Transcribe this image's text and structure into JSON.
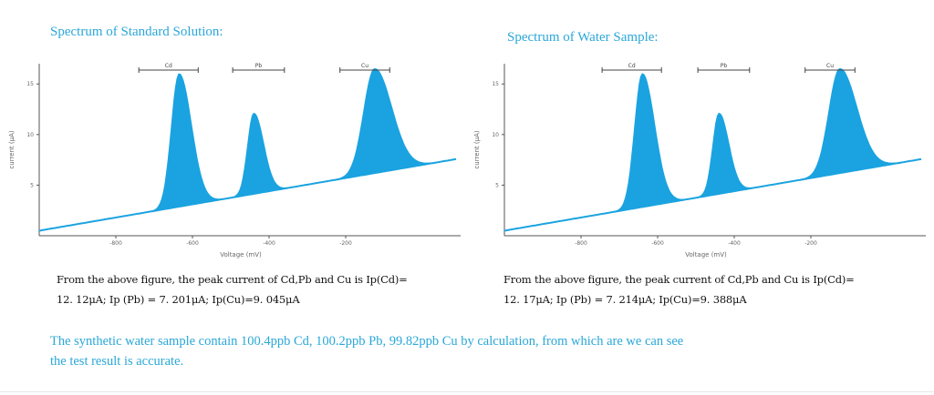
{
  "colors": {
    "fill": "#1aa3e0",
    "title": "#2aa7d8",
    "text": "#111111"
  },
  "titles": {
    "left": "Spectrum of Standard Solution:",
    "right": "Spectrum of Water Sample:"
  },
  "descriptions": {
    "left_line1": "From the above figure, the peak current of Cd,Pb and Cu is Ip(Cd)=",
    "left_line2": "12. 12μA; Ip (Pb) = 7. 201μA; Ip(Cu)=9. 045μA",
    "right_line1": "From the above figure, the peak current of Cd,Pb and Cu is Ip(Cd)=",
    "right_line2": "12. 17μA; Ip (Pb) = 7. 214μA; Ip(Cu)=9. 388μA"
  },
  "conclusion": {
    "line1": "The synthetic water sample contain 100.4ppb Cd, 100.2ppb Pb, 99.82ppb Cu by calculation, from which are we can see",
    "line2": "the test result is accurate."
  },
  "chart_data": [
    {
      "type": "area",
      "title": "Spectrum of Standard Solution:",
      "xlabel": "Voltage (mV)",
      "ylabel": "current (μA)",
      "xlim": [
        -1000,
        100
      ],
      "ylim": [
        0,
        17
      ],
      "xticks": [
        -800,
        -600,
        -400,
        -200
      ],
      "yticks": [
        5,
        10,
        15
      ],
      "baseline": {
        "start": 0.5,
        "slope": 0.0065
      },
      "peaks": [
        {
          "name": "Cd",
          "x": -635,
          "y": 16.0,
          "width": 20,
          "range": [
            -740,
            -585
          ]
        },
        {
          "name": "Pb",
          "x": -440,
          "y": 12.1,
          "width": 16,
          "range": [
            -495,
            -360
          ]
        },
        {
          "name": "Cu",
          "x": -125,
          "y": 16.5,
          "width": 28,
          "range": [
            -215,
            -85
          ]
        }
      ]
    },
    {
      "type": "area",
      "title": "Spectrum of Water Sample:",
      "xlabel": "Voltage (mV)",
      "ylabel": "current (μA)",
      "xlim": [
        -1000,
        100
      ],
      "ylim": [
        0,
        17
      ],
      "xticks": [
        -800,
        -600,
        -400,
        -200
      ],
      "yticks": [
        5,
        10,
        15
      ],
      "baseline": {
        "start": 0.5,
        "slope": 0.0065
      },
      "peaks": [
        {
          "name": "Cd",
          "x": -640,
          "y": 16.0,
          "width": 20,
          "range": [
            -745,
            -590
          ]
        },
        {
          "name": "Pb",
          "x": -440,
          "y": 12.1,
          "width": 16,
          "range": [
            -495,
            -360
          ]
        },
        {
          "name": "Cu",
          "x": -125,
          "y": 16.5,
          "width": 28,
          "range": [
            -215,
            -85
          ]
        }
      ]
    }
  ]
}
